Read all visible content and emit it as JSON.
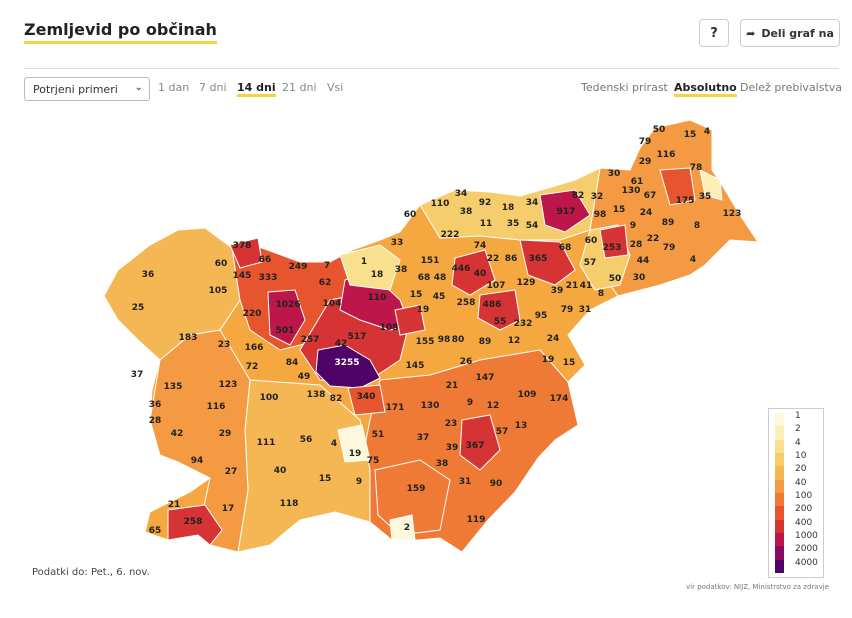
{
  "title": "Zemljevid po občinah",
  "help_label": "?",
  "share_label": "Deli graf na",
  "select_value": "Potrjeni primeri",
  "ranges": [
    "1 dan",
    "7 dni",
    "14 dni",
    "21 dni",
    "Vsi"
  ],
  "active_range": "14 dni",
  "modes": [
    "Tedenski prirast",
    "Absolutno",
    "Delež prebivalstva"
  ],
  "active_mode": "Absolutno",
  "map_labels": [
    "50",
    "15",
    "4",
    "79",
    "116",
    "29",
    "78",
    "30",
    "61",
    "130",
    "67",
    "175",
    "35",
    "34",
    "92",
    "18",
    "34",
    "917",
    "82",
    "32",
    "15",
    "24",
    "123",
    "110",
    "60",
    "38",
    "11",
    "35",
    "54",
    "98",
    "9",
    "89",
    "8",
    "79",
    "222",
    "33",
    "74",
    "68",
    "60",
    "253",
    "28",
    "22",
    "378",
    "66",
    "249",
    "446",
    "22",
    "86",
    "365",
    "57",
    "44",
    "4",
    "60",
    "145",
    "7",
    "1",
    "18",
    "38",
    "40",
    "107",
    "129",
    "50",
    "30",
    "36",
    "333",
    "62",
    "151",
    "68",
    "48",
    "258",
    "486",
    "41",
    "39",
    "21",
    "8",
    "105",
    "110",
    "15",
    "45",
    "19",
    "55",
    "79",
    "31",
    "25",
    "1026",
    "104",
    "95",
    "232",
    "220",
    "501",
    "517",
    "257",
    "42",
    "108",
    "183",
    "23",
    "166",
    "24",
    "19",
    "15",
    "37",
    "84",
    "3255",
    "80",
    "89",
    "12",
    "72",
    "155",
    "98",
    "135",
    "123",
    "145",
    "26",
    "49",
    "147",
    "36",
    "116",
    "100",
    "138",
    "82",
    "340",
    "171",
    "130",
    "9",
    "109",
    "174",
    "28",
    "21",
    "12",
    "42",
    "29",
    "56",
    "51",
    "37",
    "23",
    "57",
    "13",
    "111",
    "4",
    "19",
    "367",
    "94",
    "75",
    "39",
    "27",
    "40",
    "15",
    "9",
    "38",
    "31",
    "90",
    "118",
    "159",
    "21",
    "17",
    "258",
    "119",
    "2",
    "65"
  ],
  "legend": {
    "steps": [
      "1",
      "2",
      "4",
      "10",
      "20",
      "40",
      "100",
      "200",
      "400",
      "1000",
      "2000",
      "4000"
    ],
    "colors": [
      "#fdf8dc",
      "#fbeeb6",
      "#f8e08f",
      "#f6cd6c",
      "#f5b754",
      "#f39a42",
      "#ef7a35",
      "#e6552e",
      "#d63434",
      "#bc164a",
      "#8a0a63",
      "#4f0366"
    ]
  },
  "data_date": "Podatki do: Pet., 6. nov.",
  "source": "vir podatkov: NIJZ, Ministrstvo za zdravje"
}
